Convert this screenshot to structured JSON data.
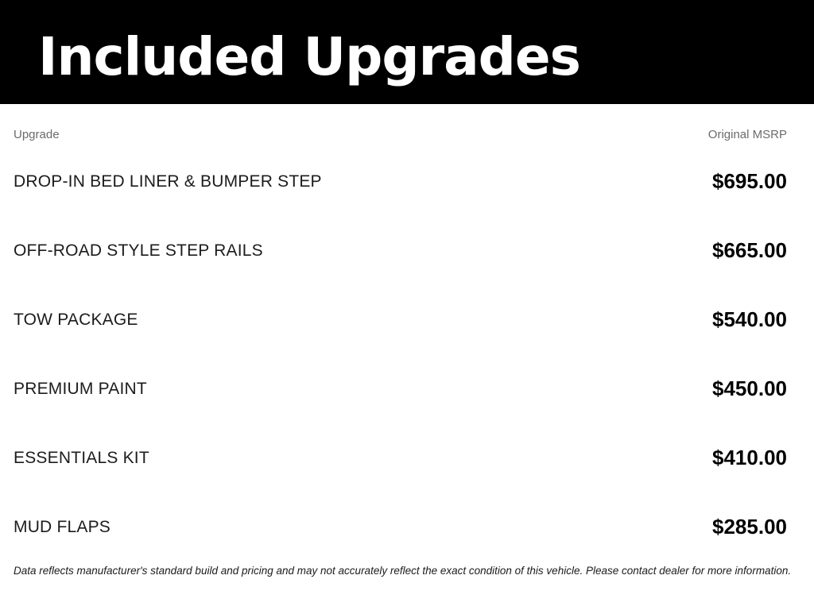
{
  "header": {
    "title": "Included Upgrades"
  },
  "table": {
    "columns": {
      "upgrade": "Upgrade",
      "msrp": "Original MSRP"
    },
    "rows": [
      {
        "name": "DROP-IN BED LINER & BUMPER STEP",
        "price": "$695.00"
      },
      {
        "name": "OFF-ROAD STYLE STEP RAILS",
        "price": "$665.00"
      },
      {
        "name": "TOW PACKAGE",
        "price": "$540.00"
      },
      {
        "name": "PREMIUM PAINT",
        "price": "$450.00"
      },
      {
        "name": "ESSENTIALS KIT",
        "price": "$410.00"
      },
      {
        "name": "MUD FLAPS",
        "price": "$285.00"
      }
    ]
  },
  "footer": {
    "disclaimer": "Data reflects manufacturer's standard build and pricing and may not accurately reflect the exact condition of this vehicle. Please contact dealer for more information."
  },
  "colors": {
    "banner_bg": "#000000",
    "title_text": "#ffffff",
    "column_header_text": "#6b6b6b",
    "row_text": "#1c1c1c",
    "price_text": "#000000",
    "page_bg": "#ffffff"
  }
}
